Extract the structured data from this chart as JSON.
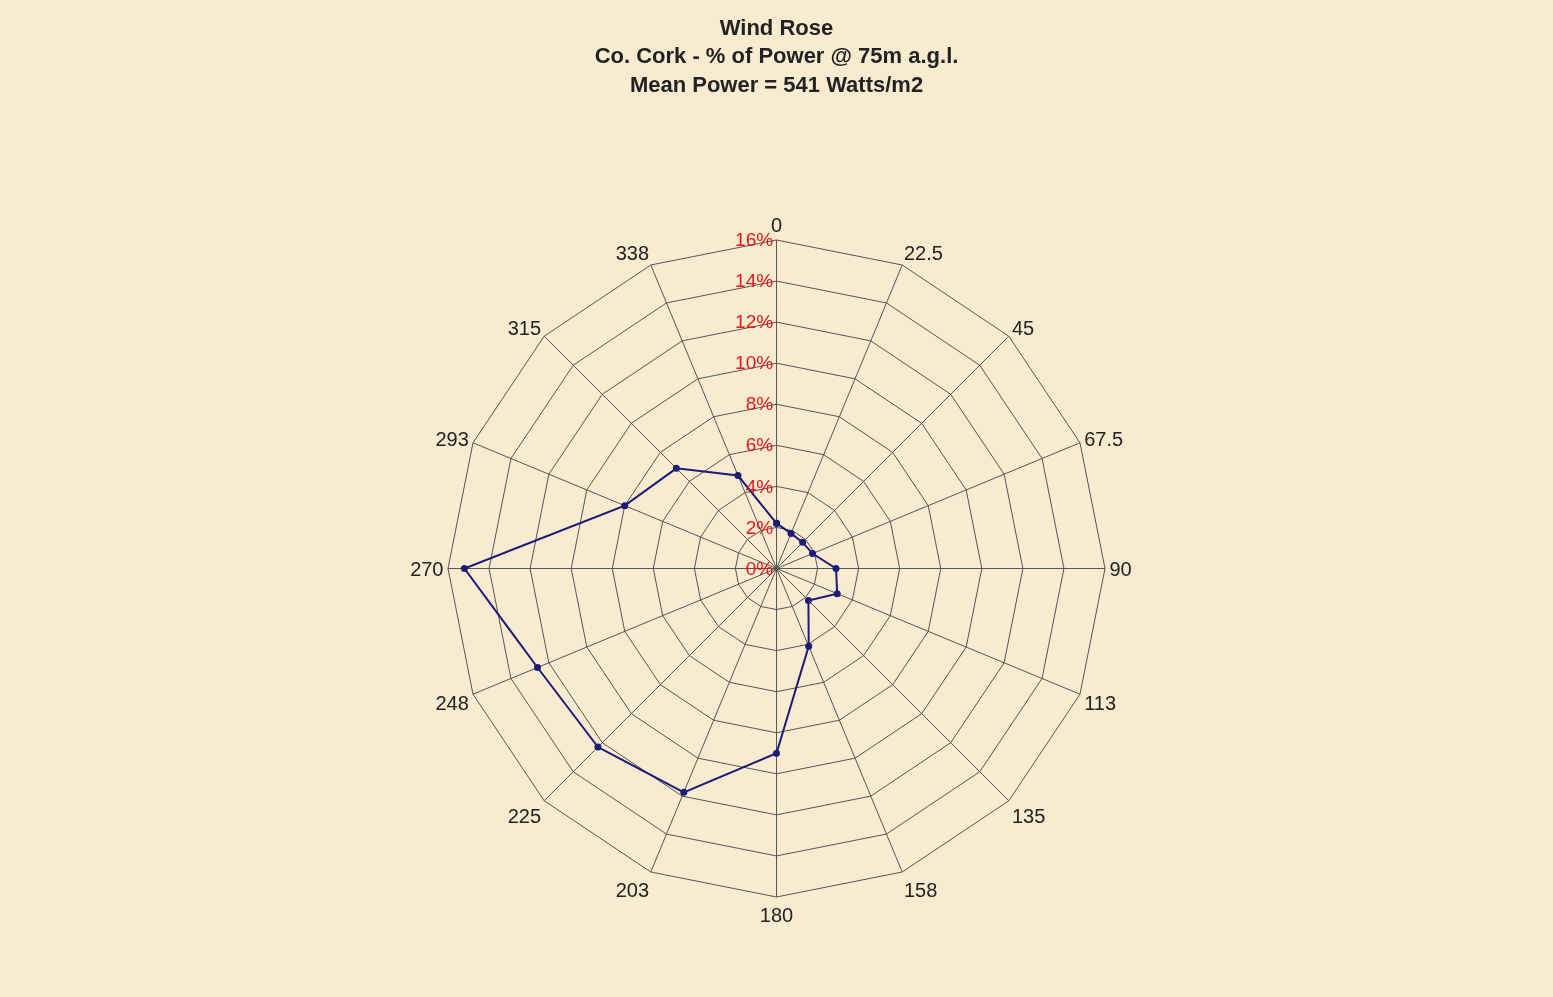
{
  "chart_data": {
    "type": "radar",
    "title": "Wind Rose",
    "subtitle": "Co. Cork - % of Power @ 75m a.g.l.\nMean Power = 541 Watts/m2",
    "categories": [
      "0",
      "22.5",
      "45",
      "67.5",
      "90",
      "113",
      "135",
      "158",
      "180",
      "203",
      "225",
      "248",
      "270",
      "293",
      "315",
      "338"
    ],
    "series": [
      {
        "color": "#1c1c78",
        "values": [
          2.2,
          1.85,
          1.8,
          1.9,
          2.9,
          3.2,
          2.2,
          4.1,
          9.0,
          11.8,
          12.3,
          12.6,
          15.2,
          8.0,
          6.9,
          4.9
        ]
      }
    ],
    "ylim": [
      0,
      16
    ],
    "yticks": [
      {
        "value": 0,
        "label": "0%"
      },
      {
        "value": 2,
        "label": "2%"
      },
      {
        "value": 4,
        "label": "4%"
      },
      {
        "value": 6,
        "label": "6%"
      },
      {
        "value": 8,
        "label": "8%"
      },
      {
        "value": 10,
        "label": "10%"
      },
      {
        "value": 12,
        "label": "12%"
      },
      {
        "value": 14,
        "label": "14%"
      },
      {
        "value": 16,
        "label": "16%"
      }
    ],
    "grid": true,
    "marker": "circle",
    "line_style": "solid"
  }
}
